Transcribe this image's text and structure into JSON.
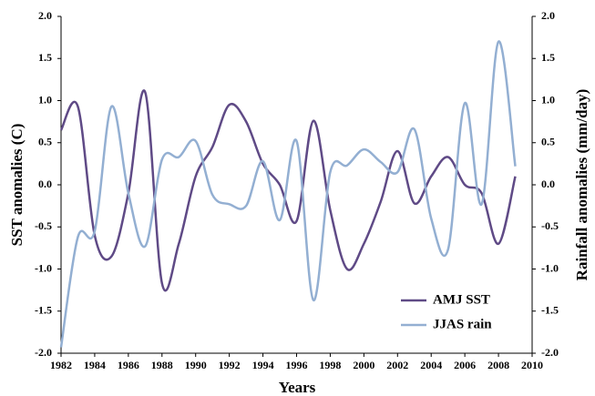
{
  "chart_data": {
    "type": "line",
    "xlabel": "Years",
    "ylabel": "SST anomalies (C)",
    "y2label": "Rainfall anomalies  (mm/day)",
    "x": [
      1982,
      1983,
      1984,
      1985,
      1986,
      1987,
      1988,
      1989,
      1990,
      1991,
      1992,
      1993,
      1994,
      1995,
      1996,
      1997,
      1998,
      1999,
      2000,
      2001,
      2002,
      2003,
      2004,
      2005,
      2006,
      2007,
      2008,
      2009
    ],
    "series": [
      {
        "name": "AMJ SST",
        "color": "#5f4a86",
        "values": [
          0.65,
          0.93,
          -0.6,
          -0.85,
          -0.1,
          1.1,
          -1.17,
          -0.7,
          0.1,
          0.45,
          0.95,
          0.75,
          0.25,
          0.0,
          -0.43,
          0.76,
          -0.3,
          -1.0,
          -0.7,
          -0.2,
          0.4,
          -0.22,
          0.1,
          0.33,
          0.0,
          -0.1,
          -0.7,
          0.1
        ]
      },
      {
        "name": "JJAS rain",
        "color": "#93afd2",
        "axis": "y2",
        "values": [
          -1.93,
          -0.62,
          -0.55,
          0.93,
          -0.1,
          -0.73,
          0.3,
          0.33,
          0.52,
          -0.12,
          -0.23,
          -0.25,
          0.28,
          -0.42,
          0.52,
          -1.37,
          0.15,
          0.23,
          0.42,
          0.27,
          0.15,
          0.66,
          -0.4,
          -0.77,
          0.97,
          -0.23,
          1.7,
          0.22
        ]
      }
    ],
    "xlim": [
      1982,
      2010
    ],
    "xticks": [
      1982,
      1984,
      1986,
      1988,
      1990,
      1992,
      1994,
      1996,
      1998,
      2000,
      2002,
      2004,
      2006,
      2008,
      2010
    ],
    "ylim": [
      -2,
      2
    ],
    "yticks": [
      {
        "value": -2,
        "label": "-2.0"
      },
      -1.5,
      {
        "value": -1,
        "label": "-1.0"
      },
      -0.5,
      {
        "value": 0,
        "label": "0.0"
      },
      0.5,
      {
        "value": 1,
        "label": "1.0"
      },
      1.5,
      {
        "value": 2,
        "label": "2.0"
      }
    ],
    "y2lim": [
      -2,
      2
    ],
    "y2ticks": [
      {
        "value": -2,
        "label": "-2.0"
      },
      -1.5,
      {
        "value": -1,
        "label": "-1.0"
      },
      -0.5,
      {
        "value": 0,
        "label": "0.0"
      },
      0.5,
      {
        "value": 1,
        "label": "1.0"
      },
      1.5,
      {
        "value": 2,
        "label": "2.0"
      }
    ],
    "legend": "lower right"
  }
}
